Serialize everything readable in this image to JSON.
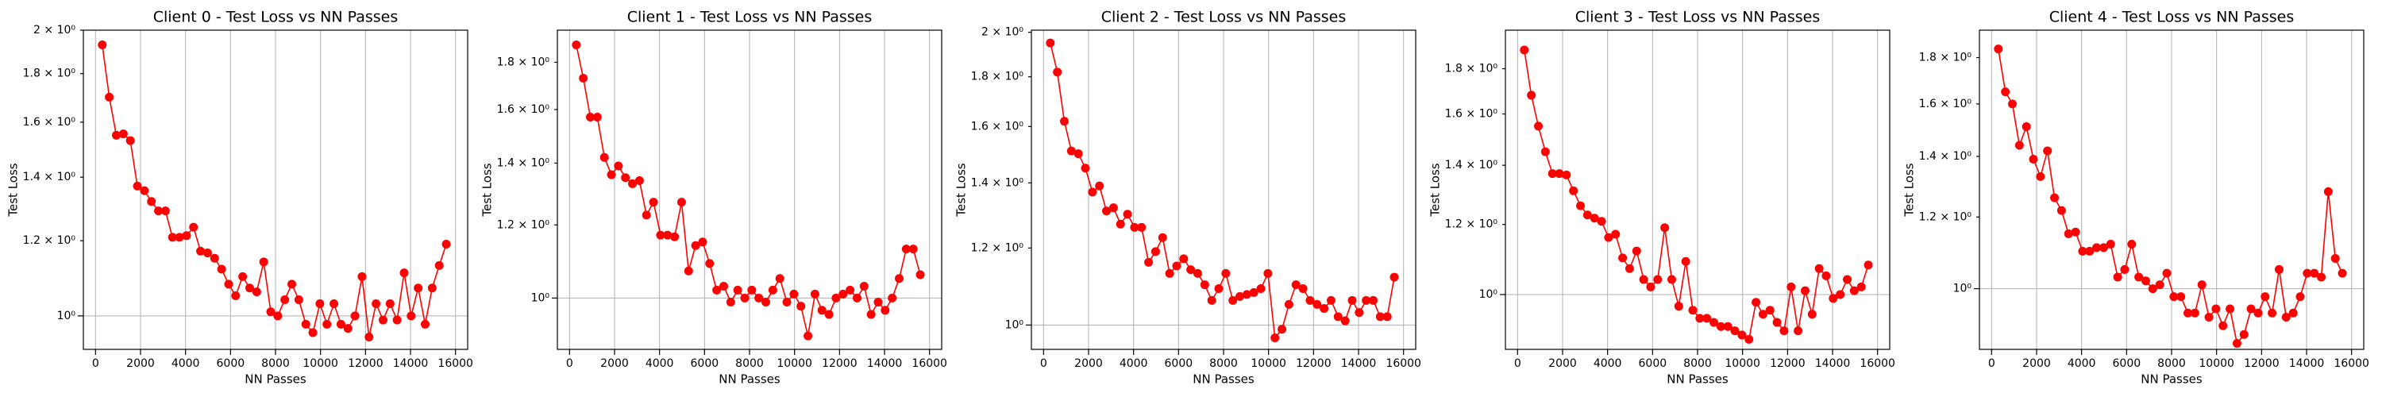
{
  "chart_data": [
    {
      "type": "line",
      "title": "Client 0 - Test Loss vs NN Passes",
      "x_label": "NN Passes",
      "y_label": "Test Loss",
      "color": "#ff0000",
      "log_y": true,
      "grid": true,
      "x": [
        300,
        612,
        924,
        1236,
        1548,
        1860,
        2172,
        2484,
        2796,
        3108,
        3420,
        3732,
        4044,
        4356,
        4668,
        4980,
        5292,
        5604,
        5916,
        6228,
        6540,
        6852,
        7164,
        7476,
        7788,
        8100,
        8412,
        8724,
        9036,
        9348,
        9660,
        9972,
        10284,
        10596,
        10908,
        11220,
        11532,
        11844,
        12156,
        12468,
        12780,
        13092,
        13404,
        13716,
        14028,
        14340,
        14652,
        14964,
        15276,
        15588
      ],
      "values": [
        1.93,
        1.7,
        1.55,
        1.555,
        1.53,
        1.37,
        1.355,
        1.32,
        1.29,
        1.29,
        1.21,
        1.21,
        1.215,
        1.24,
        1.17,
        1.165,
        1.15,
        1.12,
        1.08,
        1.05,
        1.1,
        1.07,
        1.06,
        1.14,
        1.01,
        1.0,
        1.04,
        1.08,
        1.04,
        0.98,
        0.96,
        1.03,
        0.98,
        1.03,
        0.98,
        0.97,
        1.0,
        1.1,
        0.95,
        1.03,
        0.99,
        1.03,
        0.99,
        1.11,
        1.0,
        1.07,
        0.98,
        1.07,
        1.13,
        1.19
      ],
      "xlim": [
        -540,
        16540
      ],
      "xticks": [
        0,
        2000,
        4000,
        6000,
        8000,
        10000,
        12000,
        14000,
        16000
      ],
      "ylim": [
        0.922,
        2.0
      ],
      "yticks": [
        {
          "value": 1,
          "label": "10⁰"
        },
        {
          "value": 1.2,
          "label": "1.2 × 10⁰"
        },
        {
          "value": 1.4,
          "label": "1.4 × 10⁰"
        },
        {
          "value": 1.6,
          "label": "1.6 × 10⁰"
        },
        {
          "value": 1.8,
          "label": "1.8 × 10⁰"
        },
        {
          "value": 2,
          "label": "2 × 10⁰"
        }
      ]
    },
    {
      "type": "line",
      "title": "Client 1 - Test Loss vs NN Passes",
      "x_label": "NN Passes",
      "y_label": "Test Loss",
      "color": "#ff0000",
      "log_y": true,
      "grid": true,
      "x": [
        300,
        612,
        924,
        1236,
        1548,
        1860,
        2172,
        2484,
        2796,
        3108,
        3420,
        3732,
        4044,
        4356,
        4668,
        4980,
        5292,
        5604,
        5916,
        6228,
        6540,
        6852,
        7164,
        7476,
        7788,
        8100,
        8412,
        8724,
        9036,
        9348,
        9660,
        9972,
        10284,
        10596,
        10908,
        11220,
        11532,
        11844,
        12156,
        12468,
        12780,
        13092,
        13404,
        13716,
        14028,
        14340,
        14652,
        14964,
        15276,
        15588
      ],
      "values": [
        1.88,
        1.73,
        1.57,
        1.57,
        1.42,
        1.36,
        1.39,
        1.35,
        1.33,
        1.34,
        1.23,
        1.27,
        1.17,
        1.17,
        1.165,
        1.27,
        1.07,
        1.14,
        1.15,
        1.09,
        1.02,
        1.03,
        0.99,
        1.02,
        1.0,
        1.02,
        1.0,
        0.99,
        1.02,
        1.05,
        0.99,
        1.01,
        0.98,
        0.91,
        1.01,
        0.97,
        0.96,
        1.0,
        1.01,
        1.02,
        1.0,
        1.03,
        0.96,
        0.99,
        0.97,
        1.0,
        1.05,
        1.13,
        1.13,
        1.06
      ],
      "xlim": [
        -540,
        16540
      ],
      "xticks": [
        0,
        2000,
        4000,
        6000,
        8000,
        10000,
        12000,
        14000,
        16000
      ],
      "ylim": [
        0.88,
        1.95
      ],
      "yticks": [
        {
          "value": 1,
          "label": "10⁰"
        },
        {
          "value": 1.2,
          "label": "1.2 × 10⁰"
        },
        {
          "value": 1.4,
          "label": "1.4 × 10⁰"
        },
        {
          "value": 1.6,
          "label": "1.6 × 10⁰"
        },
        {
          "value": 1.8,
          "label": "1.8 × 10⁰"
        }
      ]
    },
    {
      "type": "line",
      "title": "Client 2 - Test Loss vs NN Passes",
      "x_label": "NN Passes",
      "y_label": "Test Loss",
      "color": "#ff0000",
      "log_y": true,
      "grid": true,
      "x": [
        300,
        612,
        924,
        1236,
        1548,
        1860,
        2172,
        2484,
        2796,
        3108,
        3420,
        3732,
        4044,
        4356,
        4668,
        4980,
        5292,
        5604,
        5916,
        6228,
        6540,
        6852,
        7164,
        7476,
        7788,
        8100,
        8412,
        8724,
        9036,
        9348,
        9660,
        9972,
        10284,
        10596,
        10908,
        11220,
        11532,
        11844,
        12156,
        12468,
        12780,
        13092,
        13404,
        13716,
        14028,
        14340,
        14652,
        14964,
        15276,
        15588
      ],
      "values": [
        1.95,
        1.82,
        1.62,
        1.51,
        1.5,
        1.45,
        1.37,
        1.39,
        1.31,
        1.32,
        1.27,
        1.3,
        1.26,
        1.26,
        1.16,
        1.19,
        1.23,
        1.13,
        1.15,
        1.17,
        1.14,
        1.13,
        1.1,
        1.06,
        1.09,
        1.13,
        1.06,
        1.07,
        1.075,
        1.08,
        1.09,
        1.13,
        0.97,
        0.99,
        1.05,
        1.1,
        1.09,
        1.06,
        1.05,
        1.04,
        1.06,
        1.02,
        1.01,
        1.06,
        1.03,
        1.06,
        1.06,
        1.02,
        1.02,
        1.12
      ],
      "xlim": [
        -540,
        16540
      ],
      "xticks": [
        0,
        2000,
        4000,
        6000,
        8000,
        10000,
        12000,
        14000,
        16000
      ],
      "ylim": [
        0.944,
        2.01
      ],
      "yticks": [
        {
          "value": 1,
          "label": "10⁰"
        },
        {
          "value": 1.2,
          "label": "1.2 × 10⁰"
        },
        {
          "value": 1.4,
          "label": "1.4 × 10⁰"
        },
        {
          "value": 1.6,
          "label": "1.6 × 10⁰"
        },
        {
          "value": 1.8,
          "label": "1.8 × 10⁰"
        },
        {
          "value": 2,
          "label": "2 × 10⁰"
        }
      ]
    },
    {
      "type": "line",
      "title": "Client 3 - Test Loss vs NN Passes",
      "x_label": "NN Passes",
      "y_label": "Test Loss",
      "color": "#ff0000",
      "log_y": true,
      "grid": true,
      "x": [
        300,
        612,
        924,
        1236,
        1548,
        1860,
        2172,
        2484,
        2796,
        3108,
        3420,
        3732,
        4044,
        4356,
        4668,
        4980,
        5292,
        5604,
        5916,
        6228,
        6540,
        6852,
        7164,
        7476,
        7788,
        8100,
        8412,
        8724,
        9036,
        9348,
        9660,
        9972,
        10284,
        10596,
        10908,
        11220,
        11532,
        11844,
        12156,
        12468,
        12780,
        13092,
        13404,
        13716,
        14028,
        14340,
        14652,
        14964,
        15276,
        15588
      ],
      "values": [
        1.89,
        1.68,
        1.55,
        1.45,
        1.37,
        1.37,
        1.365,
        1.31,
        1.26,
        1.23,
        1.22,
        1.21,
        1.16,
        1.17,
        1.1,
        1.07,
        1.12,
        1.04,
        1.02,
        1.04,
        1.19,
        1.04,
        0.97,
        1.09,
        0.96,
        0.94,
        0.94,
        0.93,
        0.92,
        0.92,
        0.91,
        0.9,
        0.89,
        0.98,
        0.95,
        0.96,
        0.93,
        0.91,
        1.02,
        0.91,
        1.01,
        0.95,
        1.07,
        1.05,
        0.99,
        1.0,
        1.04,
        1.01,
        1.02,
        1.08
      ],
      "xlim": [
        -540,
        16540
      ],
      "xticks": [
        0,
        2000,
        4000,
        6000,
        8000,
        10000,
        12000,
        14000,
        16000
      ],
      "ylim": [
        0.867,
        1.99
      ],
      "yticks": [
        {
          "value": 1,
          "label": "10⁰"
        },
        {
          "value": 1.2,
          "label": "1.2 × 10⁰"
        },
        {
          "value": 1.4,
          "label": "1.4 × 10⁰"
        },
        {
          "value": 1.6,
          "label": "1.6 × 10⁰"
        },
        {
          "value": 1.8,
          "label": "1.8 × 10⁰"
        }
      ]
    },
    {
      "type": "line",
      "title": "Client 4 - Test Loss vs NN Passes",
      "x_label": "NN Passes",
      "y_label": "Test Loss",
      "color": "#ff0000",
      "log_y": true,
      "grid": true,
      "x": [
        300,
        612,
        924,
        1236,
        1548,
        1860,
        2172,
        2484,
        2796,
        3108,
        3420,
        3732,
        4044,
        4356,
        4668,
        4980,
        5292,
        5604,
        5916,
        6228,
        6540,
        6852,
        7164,
        7476,
        7788,
        8100,
        8412,
        8724,
        9036,
        9348,
        9660,
        9972,
        10284,
        10596,
        10908,
        11220,
        11532,
        11844,
        12156,
        12468,
        12780,
        13092,
        13404,
        13716,
        14028,
        14340,
        14652,
        14964,
        15276,
        15588
      ],
      "values": [
        1.84,
        1.65,
        1.6,
        1.44,
        1.51,
        1.39,
        1.33,
        1.42,
        1.26,
        1.22,
        1.15,
        1.155,
        1.1,
        1.1,
        1.11,
        1.11,
        1.12,
        1.03,
        1.05,
        1.12,
        1.03,
        1.02,
        1.0,
        1.01,
        1.04,
        0.98,
        0.98,
        0.94,
        0.94,
        1.01,
        0.93,
        0.95,
        0.91,
        0.95,
        0.87,
        0.89,
        0.95,
        0.94,
        0.98,
        0.94,
        1.05,
        0.93,
        0.94,
        0.98,
        1.04,
        1.04,
        1.03,
        1.28,
        1.08,
        1.04
      ],
      "xlim": [
        -540,
        16540
      ],
      "xticks": [
        0,
        2000,
        4000,
        6000,
        8000,
        10000,
        12000,
        14000,
        16000
      ],
      "ylim": [
        0.857,
        1.93
      ],
      "yticks": [
        {
          "value": 1,
          "label": "10⁰"
        },
        {
          "value": 1.2,
          "label": "1.2 × 10⁰"
        },
        {
          "value": 1.4,
          "label": "1.4 × 10⁰"
        },
        {
          "value": 1.6,
          "label": "1.6 × 10⁰"
        },
        {
          "value": 1.8,
          "label": "1.8 × 10⁰"
        }
      ]
    }
  ]
}
